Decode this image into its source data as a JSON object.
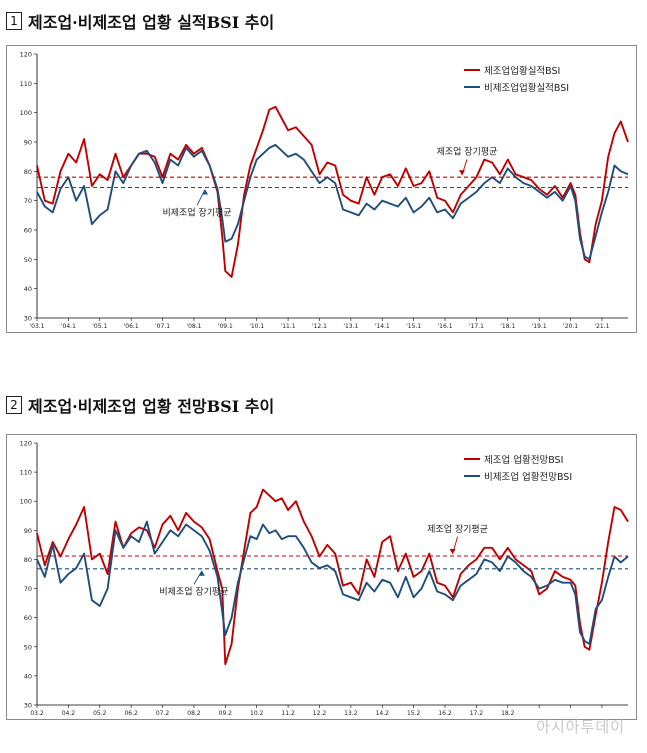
{
  "sections": [
    {
      "num": "1",
      "title": "제조업·비제조업 업황 실적BSI 추이"
    },
    {
      "num": "2",
      "title": "제조업·비제조업 업황 전망BSI 추이"
    }
  ],
  "watermark": "아시아투데이",
  "colors": {
    "manufacturing": "#c00000",
    "non_manufacturing": "#1f4e79"
  },
  "chart_data": [
    {
      "type": "line",
      "title": "",
      "xlabel": "",
      "ylabel": "",
      "ylim": [
        30,
        120
      ],
      "yticks": [
        30,
        40,
        50,
        60,
        70,
        80,
        90,
        100,
        110,
        120
      ],
      "xlim": [
        2003.0,
        2021.83
      ],
      "xticks": [
        "'03.1",
        "'04.1",
        "'05.1",
        "'06.1",
        "'07.1",
        "'08.1",
        "'09.1",
        "'10.1",
        "'11.1",
        "'12.1",
        "'13.1",
        "'14.1",
        "'15.1",
        "'16.1",
        "'17.1",
        "'18.1",
        "'19.1",
        "'20.1",
        "'21.1"
      ],
      "grid": false,
      "legend": "top-right",
      "series": [
        {
          "name": "제조업업황실적BSI",
          "color": "#c00000",
          "x": [
            2003.0,
            2003.25,
            2003.5,
            2003.75,
            2004.0,
            2004.25,
            2004.5,
            2004.75,
            2005.0,
            2005.25,
            2005.5,
            2005.75,
            2006.0,
            2006.25,
            2006.5,
            2006.75,
            2007.0,
            2007.25,
            2007.5,
            2007.75,
            2008.0,
            2008.25,
            2008.5,
            2008.75,
            2008.9,
            2009.0,
            2009.2,
            2009.4,
            2009.6,
            2009.8,
            2010.0,
            2010.2,
            2010.4,
            2010.6,
            2010.8,
            2011.0,
            2011.25,
            2011.5,
            2011.75,
            2012.0,
            2012.25,
            2012.5,
            2012.75,
            2013.0,
            2013.25,
            2013.5,
            2013.75,
            2014.0,
            2014.25,
            2014.5,
            2014.75,
            2015.0,
            2015.25,
            2015.5,
            2015.75,
            2016.0,
            2016.25,
            2016.5,
            2016.75,
            2017.0,
            2017.25,
            2017.5,
            2017.75,
            2018.0,
            2018.25,
            2018.5,
            2018.75,
            2019.0,
            2019.25,
            2019.5,
            2019.75,
            2020.0,
            2020.15,
            2020.3,
            2020.45,
            2020.6,
            2020.8,
            2021.0,
            2021.2,
            2021.4,
            2021.6,
            2021.83
          ],
          "y": [
            82,
            70,
            69,
            80,
            86,
            83,
            91,
            75,
            79,
            77,
            86,
            78,
            82,
            86,
            86,
            85,
            78,
            86,
            84,
            89,
            86,
            88,
            82,
            73,
            58,
            46,
            44,
            55,
            72,
            82,
            88,
            94,
            101,
            102,
            98,
            94,
            95,
            92,
            89,
            79,
            83,
            82,
            72,
            70,
            69,
            78,
            72,
            78,
            79,
            75,
            81,
            75,
            76,
            80,
            71,
            70,
            66,
            72,
            75,
            78,
            84,
            83,
            79,
            84,
            79,
            78,
            77,
            74,
            72,
            75,
            71,
            76,
            72,
            59,
            50,
            49,
            62,
            70,
            85,
            93,
            97,
            90
          ]
        },
        {
          "name": "비제조업업황실적BSI",
          "color": "#1f4e79",
          "x": [
            2003.0,
            2003.25,
            2003.5,
            2003.75,
            2004.0,
            2004.25,
            2004.5,
            2004.75,
            2005.0,
            2005.25,
            2005.5,
            2005.75,
            2006.0,
            2006.25,
            2006.5,
            2006.75,
            2007.0,
            2007.25,
            2007.5,
            2007.75,
            2008.0,
            2008.25,
            2008.5,
            2008.75,
            2008.9,
            2009.0,
            2009.2,
            2009.4,
            2009.6,
            2009.8,
            2010.0,
            2010.2,
            2010.4,
            2010.6,
            2010.8,
            2011.0,
            2011.25,
            2011.5,
            2011.75,
            2012.0,
            2012.25,
            2012.5,
            2012.75,
            2013.0,
            2013.25,
            2013.5,
            2013.75,
            2014.0,
            2014.25,
            2014.5,
            2014.75,
            2015.0,
            2015.25,
            2015.5,
            2015.75,
            2016.0,
            2016.25,
            2016.5,
            2016.75,
            2017.0,
            2017.25,
            2017.5,
            2017.75,
            2018.0,
            2018.25,
            2018.5,
            2018.75,
            2019.0,
            2019.25,
            2019.5,
            2019.75,
            2020.0,
            2020.15,
            2020.3,
            2020.45,
            2020.6,
            2020.8,
            2021.0,
            2021.2,
            2021.4,
            2021.6,
            2021.83
          ],
          "y": [
            73,
            68,
            66,
            74,
            78,
            70,
            75,
            62,
            65,
            67,
            80,
            76,
            82,
            86,
            87,
            83,
            76,
            84,
            82,
            88,
            85,
            87,
            82,
            74,
            64,
            56,
            57,
            62,
            70,
            78,
            84,
            86,
            88,
            89,
            87,
            85,
            86,
            84,
            80,
            76,
            78,
            76,
            67,
            66,
            65,
            69,
            67,
            70,
            69,
            68,
            71,
            66,
            68,
            71,
            66,
            67,
            64,
            69,
            71,
            73,
            76,
            78,
            76,
            81,
            78,
            76,
            75,
            73,
            71,
            73,
            70,
            75,
            70,
            57,
            51,
            50,
            58,
            66,
            73,
            82,
            80,
            79
          ]
        },
        {
          "name": "",
          "color": "#c00000",
          "dashed": true,
          "x": [
            2003.0,
            2021.83
          ],
          "y": [
            78,
            78
          ]
        },
        {
          "name": "",
          "color": "#1f4e79",
          "dashed": true,
          "x": [
            2003.0,
            2021.83
          ],
          "y": [
            74.5,
            74.5
          ]
        }
      ],
      "annotations": [
        {
          "text": "제조업 장기평균",
          "x": 2016.7,
          "y": 85.8
        },
        {
          "text": "비제조업 장기평균",
          "x": 2008.1,
          "y": 65.0
        }
      ]
    },
    {
      "type": "line",
      "title": "",
      "xlabel": "",
      "ylabel": "",
      "ylim": [
        30,
        120
      ],
      "yticks": [
        30,
        40,
        50,
        60,
        70,
        80,
        90,
        100,
        110,
        120
      ],
      "xlim": [
        2003.0,
        2021.83
      ],
      "xticks": [
        "03.2",
        "04.2",
        "05.2",
        "06.2",
        "07.2",
        "08.2",
        "09.2",
        "10.2",
        "11.2",
        "12.2",
        "13.2",
        "14.2",
        "15.2",
        "16.2",
        "17.2",
        "18.2",
        "",
        "",
        ""
      ],
      "grid": false,
      "legend": "top-right",
      "series": [
        {
          "name": "제조업 업황전망BSI",
          "color": "#c00000",
          "x": [
            2003.0,
            2003.25,
            2003.5,
            2003.75,
            2004.0,
            2004.25,
            2004.5,
            2004.75,
            2005.0,
            2005.25,
            2005.5,
            2005.75,
            2006.0,
            2006.25,
            2006.5,
            2006.75,
            2007.0,
            2007.25,
            2007.5,
            2007.75,
            2008.0,
            2008.25,
            2008.5,
            2008.75,
            2008.9,
            2009.0,
            2009.2,
            2009.4,
            2009.6,
            2009.8,
            2010.0,
            2010.2,
            2010.4,
            2010.6,
            2010.8,
            2011.0,
            2011.25,
            2011.5,
            2011.75,
            2012.0,
            2012.25,
            2012.5,
            2012.75,
            2013.0,
            2013.25,
            2013.5,
            2013.75,
            2014.0,
            2014.25,
            2014.5,
            2014.75,
            2015.0,
            2015.25,
            2015.5,
            2015.75,
            2016.0,
            2016.25,
            2016.5,
            2016.75,
            2017.0,
            2017.25,
            2017.5,
            2017.75,
            2018.0,
            2018.25,
            2018.5,
            2018.75,
            2019.0,
            2019.25,
            2019.5,
            2019.75,
            2020.0,
            2020.15,
            2020.3,
            2020.45,
            2020.6,
            2020.8,
            2021.0,
            2021.2,
            2021.4,
            2021.6,
            2021.83
          ],
          "y": [
            89,
            78,
            86,
            81,
            87,
            92,
            98,
            80,
            82,
            75,
            93,
            84,
            89,
            91,
            90,
            84,
            92,
            95,
            90,
            96,
            93,
            91,
            87,
            76,
            70,
            44,
            51,
            70,
            83,
            96,
            98,
            104,
            102,
            100,
            101,
            97,
            100,
            93,
            88,
            81,
            85,
            82,
            71,
            72,
            68,
            80,
            74,
            86,
            88,
            76,
            82,
            74,
            76,
            82,
            72,
            71,
            67,
            75,
            78,
            80,
            84,
            84,
            80,
            84,
            80,
            78,
            76,
            68,
            70,
            76,
            74,
            73,
            71,
            58,
            50,
            49,
            61,
            72,
            86,
            98,
            97,
            93
          ]
        },
        {
          "name": "비제조업 업황전망BSI",
          "color": "#1f4e79",
          "x": [
            2003.0,
            2003.25,
            2003.5,
            2003.75,
            2004.0,
            2004.25,
            2004.5,
            2004.75,
            2005.0,
            2005.25,
            2005.5,
            2005.75,
            2006.0,
            2006.25,
            2006.5,
            2006.75,
            2007.0,
            2007.25,
            2007.5,
            2007.75,
            2008.0,
            2008.25,
            2008.5,
            2008.75,
            2008.9,
            2009.0,
            2009.2,
            2009.4,
            2009.6,
            2009.8,
            2010.0,
            2010.2,
            2010.4,
            2010.6,
            2010.8,
            2011.0,
            2011.25,
            2011.5,
            2011.75,
            2012.0,
            2012.25,
            2012.5,
            2012.75,
            2013.0,
            2013.25,
            2013.5,
            2013.75,
            2014.0,
            2014.25,
            2014.5,
            2014.75,
            2015.0,
            2015.25,
            2015.5,
            2015.75,
            2016.0,
            2016.25,
            2016.5,
            2016.75,
            2017.0,
            2017.25,
            2017.5,
            2017.75,
            2018.0,
            2018.25,
            2018.5,
            2018.75,
            2019.0,
            2019.25,
            2019.5,
            2019.75,
            2020.0,
            2020.15,
            2020.3,
            2020.45,
            2020.6,
            2020.8,
            2021.0,
            2021.2,
            2021.4,
            2021.6,
            2021.83
          ],
          "y": [
            80,
            74,
            85,
            72,
            75,
            77,
            82,
            66,
            64,
            70,
            90,
            84,
            88,
            86,
            93,
            82,
            86,
            90,
            88,
            92,
            90,
            88,
            83,
            74,
            62,
            54,
            60,
            72,
            80,
            88,
            87,
            92,
            89,
            90,
            87,
            88,
            88,
            84,
            79,
            77,
            78,
            76,
            68,
            67,
            66,
            72,
            69,
            73,
            72,
            67,
            74,
            67,
            70,
            76,
            69,
            68,
            66,
            71,
            73,
            75,
            80,
            79,
            76,
            81,
            79,
            76,
            74,
            70,
            71,
            73,
            72,
            72,
            68,
            55,
            52,
            51,
            63,
            66,
            74,
            81,
            79,
            81
          ]
        },
        {
          "name": "",
          "color": "#c00000",
          "dashed": true,
          "x": [
            2003.0,
            2021.83
          ],
          "y": [
            81.2,
            81.2
          ]
        },
        {
          "name": "",
          "color": "#1f4e79",
          "dashed": true,
          "x": [
            2003.0,
            2021.83
          ],
          "y": [
            76.8,
            76.8
          ]
        }
      ],
      "annotations": [
        {
          "text": "제조업 장기평균",
          "x": 2016.4,
          "y": 89.5
        },
        {
          "text": "비제조업 장기평균",
          "x": 2008.0,
          "y": 68.0
        }
      ]
    }
  ]
}
